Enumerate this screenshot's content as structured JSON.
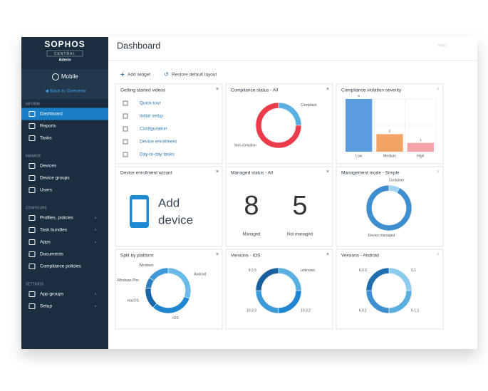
{
  "sidebar": {
    "brand": "SOPHOS",
    "product": "CENTRAL",
    "role": "Admin",
    "context": "Mobile",
    "back": "Back to Overview",
    "sections": [
      {
        "title": "INFORM",
        "items": [
          {
            "label": "Dashboard",
            "active": true
          },
          {
            "label": "Reports"
          },
          {
            "label": "Tasks"
          }
        ]
      },
      {
        "title": "MANAGE",
        "items": [
          {
            "label": "Devices"
          },
          {
            "label": "Device groups"
          },
          {
            "label": "Users"
          }
        ]
      },
      {
        "title": "CONFIGURE",
        "items": [
          {
            "label": "Profiles, policies",
            "submenu": true
          },
          {
            "label": "Task bundles",
            "submenu": true
          },
          {
            "label": "Apps",
            "submenu": true
          },
          {
            "label": "Documents"
          },
          {
            "label": "Compliance policies"
          }
        ]
      },
      {
        "title": "SETTINGS",
        "items": [
          {
            "label": "App groups",
            "submenu": true
          },
          {
            "label": "Setup",
            "submenu": true
          }
        ]
      }
    ]
  },
  "header": {
    "title": "Dashboard",
    "help": "Help"
  },
  "toolbar": {
    "add": "Add widget",
    "restore": "Restore default layout"
  },
  "widgets": [
    {
      "title": "Getting started videos",
      "type": "links",
      "links": [
        "Quick tour",
        "Initial setup",
        "Configuration",
        "Device enrollment",
        "Day-to-day tasks"
      ]
    },
    {
      "title": "Compliance status - All",
      "type": "donut",
      "segments": [
        {
          "label": "Compliant",
          "value": 25,
          "color": "#5aaee0"
        },
        {
          "label": "Non-complian",
          "value": 75,
          "color": "#ec3b4a"
        }
      ]
    },
    {
      "title": "Compliance violation severity",
      "type": "bar",
      "categories": [
        "Low",
        "Medium",
        "High"
      ],
      "values": [
        6,
        2,
        1
      ],
      "colors": [
        "#5b9be0",
        "#f2a467",
        "#f5a3ab"
      ],
      "ylim": [
        0,
        6
      ]
    },
    {
      "title": "Device enrollment wizard",
      "type": "wizard",
      "text": [
        "Add",
        "device"
      ]
    },
    {
      "title": "Managed status - All",
      "type": "counts",
      "items": [
        {
          "value": 8,
          "label": "Managed"
        },
        {
          "value": 5,
          "label": "Not managed"
        }
      ]
    },
    {
      "title": "Management mode - Simple",
      "type": "donut",
      "segments": [
        {
          "label": "Container",
          "value": 1,
          "color": "#9fd3f2"
        },
        {
          "label": "Device managed",
          "value": 12,
          "color": "#3f8fd0"
        }
      ]
    },
    {
      "title": "Split by platform",
      "type": "donut",
      "segments": [
        {
          "label": "Android",
          "value": 4,
          "color": "#6bbbe8"
        },
        {
          "label": "iOS",
          "value": 4,
          "color": "#1f86cf"
        },
        {
          "label": "macOS",
          "value": 2,
          "color": "#1565a8"
        },
        {
          "label": "Windows Pho",
          "value": 1,
          "color": "#2f7fc0"
        },
        {
          "label": "Windows",
          "value": 2,
          "color": "#3f99d8"
        }
      ]
    },
    {
      "title": "Versions - iOS",
      "type": "donut",
      "segments": [
        {
          "label": "unknown",
          "value": 1,
          "color": "#5aaee0"
        },
        {
          "label": "10.3.2",
          "value": 1,
          "color": "#1f86cf"
        },
        {
          "label": "10.3.3",
          "value": 1,
          "color": "#3d9ad8"
        },
        {
          "label": "9.3.5",
          "value": 1,
          "color": "#1a5f9e"
        }
      ]
    },
    {
      "title": "Versions - Android",
      "type": "donut",
      "segments": [
        {
          "label": "5.1",
          "value": 1,
          "color": "#8ccbee"
        },
        {
          "label": "5.1.1",
          "value": 1,
          "color": "#5aaee0"
        },
        {
          "label": "6.0.1",
          "value": 1,
          "color": "#3d8fd0"
        },
        {
          "label": "8.0.0",
          "value": 1,
          "color": "#1f6fae"
        }
      ]
    }
  ]
}
